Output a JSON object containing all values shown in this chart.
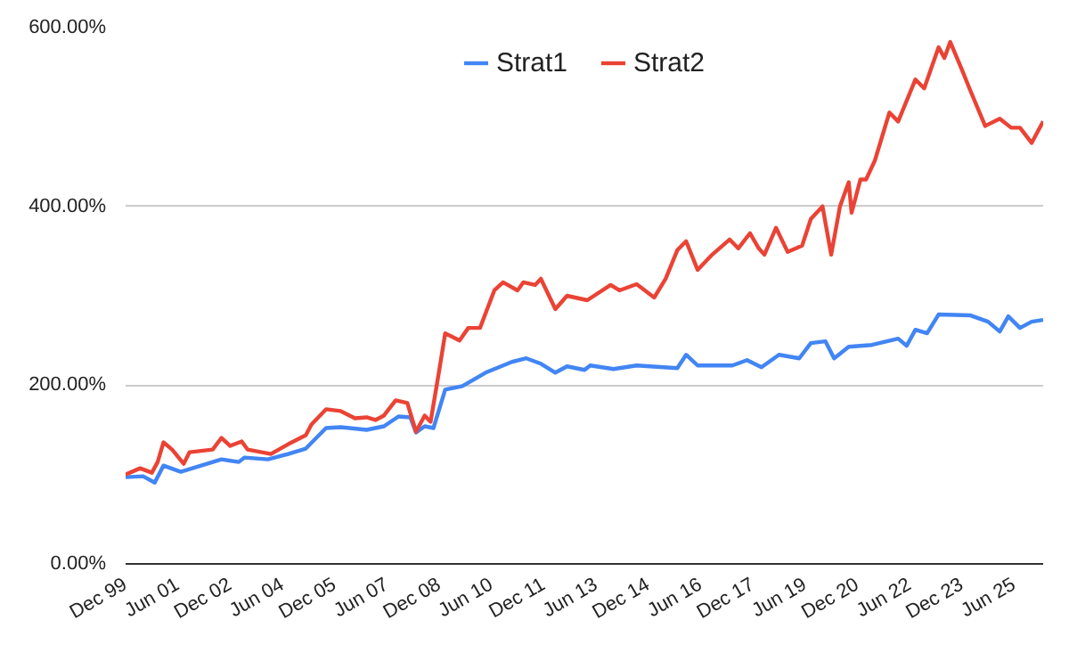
{
  "chart_data": {
    "type": "line",
    "xlim": [
      "1999-12",
      "2026-04"
    ],
    "xticks": [
      {
        "value": "1999-12",
        "label": "Dec 99"
      },
      {
        "value": "2001-06",
        "label": "Jun 01"
      },
      {
        "value": "2002-12",
        "label": "Dec 02"
      },
      {
        "value": "2004-06",
        "label": "Jun 04"
      },
      {
        "value": "2005-12",
        "label": "Dec 05"
      },
      {
        "value": "2007-06",
        "label": "Jun 07"
      },
      {
        "value": "2008-12",
        "label": "Dec 08"
      },
      {
        "value": "2010-06",
        "label": "Jun 10"
      },
      {
        "value": "2011-12",
        "label": "Dec 11"
      },
      {
        "value": "2013-06",
        "label": "Jun 13"
      },
      {
        "value": "2014-12",
        "label": "Dec 14"
      },
      {
        "value": "2016-06",
        "label": "Jun 16"
      },
      {
        "value": "2017-12",
        "label": "Dec 17"
      },
      {
        "value": "2019-06",
        "label": "Jun 19"
      },
      {
        "value": "2020-12",
        "label": "Dec 20"
      },
      {
        "value": "2022-06",
        "label": "Jun 22"
      },
      {
        "value": "2023-12",
        "label": "Dec 23"
      },
      {
        "value": "2025-06",
        "label": "Jun 25"
      }
    ],
    "ylim": [
      0,
      600
    ],
    "yticks": [
      {
        "value": 0,
        "label": "0.00%"
      },
      {
        "value": 200,
        "label": "200.00%"
      },
      {
        "value": 400,
        "label": "400.00%"
      },
      {
        "value": 600,
        "label": "600.00%"
      }
    ],
    "grid": "y",
    "legend": "top",
    "series": [
      {
        "name": "Strat1",
        "color": "#4285f4",
        "x": [
          "1999-12",
          "2000-06",
          "2000-10",
          "2001-01",
          "2001-07",
          "2001-12",
          "2002-09",
          "2003-03",
          "2003-05",
          "2004-01",
          "2004-08",
          "2005-02",
          "2005-09",
          "2006-02",
          "2006-11",
          "2007-05",
          "2007-10",
          "2008-02",
          "2008-04",
          "2008-07",
          "2008-10",
          "2009-02",
          "2009-08",
          "2010-04",
          "2011-01",
          "2011-06",
          "2011-11",
          "2012-04",
          "2012-08",
          "2013-02",
          "2013-04",
          "2013-12",
          "2014-08",
          "2015-10",
          "2016-01",
          "2016-05",
          "2017-05",
          "2017-10",
          "2018-03",
          "2018-09",
          "2019-04",
          "2019-08",
          "2020-01",
          "2020-04",
          "2020-09",
          "2021-05",
          "2022-02",
          "2022-05",
          "2022-08",
          "2022-12",
          "2023-04",
          "2024-03",
          "2024-09",
          "2025-01",
          "2025-04",
          "2025-08",
          "2025-12",
          "2026-04"
        ],
        "values": [
          97,
          98,
          91,
          110,
          103,
          108,
          117,
          114,
          119,
          117,
          123,
          129,
          152,
          153,
          150,
          154,
          165,
          164,
          147,
          154,
          152,
          195,
          199,
          214,
          226,
          230,
          224,
          214,
          221,
          217,
          222,
          218,
          222,
          219,
          234,
          222,
          222,
          228,
          220,
          234,
          230,
          247,
          249,
          230,
          243,
          245,
          252,
          244,
          262,
          258,
          279,
          278,
          271,
          260,
          277,
          264,
          271,
          273
        ]
      },
      {
        "name": "Strat2",
        "color": "#ea4335",
        "x": [
          "1999-12",
          "2000-05",
          "2000-09",
          "2000-11",
          "2001-01",
          "2001-04",
          "2001-08",
          "2001-10",
          "2002-06",
          "2002-09",
          "2002-12",
          "2003-04",
          "2003-06",
          "2004-02",
          "2004-08",
          "2005-02",
          "2005-04",
          "2005-09",
          "2006-02",
          "2006-07",
          "2006-11",
          "2007-02",
          "2007-05",
          "2007-09",
          "2008-01",
          "2008-04",
          "2008-07",
          "2008-09",
          "2008-12",
          "2009-02",
          "2009-07",
          "2009-10",
          "2010-02",
          "2010-07",
          "2010-10",
          "2011-03",
          "2011-05",
          "2011-09",
          "2011-11",
          "2012-04",
          "2012-08",
          "2013-03",
          "2013-11",
          "2014-02",
          "2014-08",
          "2015-02",
          "2015-06",
          "2015-10",
          "2016-01",
          "2016-05",
          "2016-10",
          "2017-04",
          "2017-07",
          "2017-11",
          "2018-02",
          "2018-04",
          "2018-08",
          "2018-12",
          "2019-05",
          "2019-08",
          "2019-12",
          "2020-03",
          "2020-06",
          "2020-09",
          "2020-10",
          "2021-01",
          "2021-03",
          "2021-06",
          "2021-11",
          "2022-02",
          "2022-08",
          "2022-11",
          "2023-04",
          "2023-06",
          "2023-08",
          "2023-12",
          "2024-03",
          "2024-08",
          "2025-01",
          "2025-05",
          "2025-08",
          "2025-12",
          "2026-04"
        ],
        "values": [
          100,
          107,
          102,
          114,
          136,
          128,
          112,
          125,
          128,
          141,
          132,
          137,
          128,
          123,
          134,
          144,
          156,
          173,
          171,
          163,
          164,
          161,
          166,
          183,
          180,
          148,
          166,
          159,
          217,
          258,
          250,
          264,
          264,
          306,
          315,
          306,
          315,
          312,
          319,
          285,
          300,
          295,
          312,
          306,
          313,
          298,
          319,
          351,
          361,
          329,
          346,
          363,
          353,
          370,
          353,
          346,
          376,
          349,
          356,
          386,
          400,
          346,
          400,
          427,
          393,
          430,
          430,
          451,
          505,
          495,
          542,
          532,
          578,
          566,
          584,
          553,
          529,
          490,
          498,
          488,
          488,
          471,
          495
        ]
      }
    ]
  }
}
